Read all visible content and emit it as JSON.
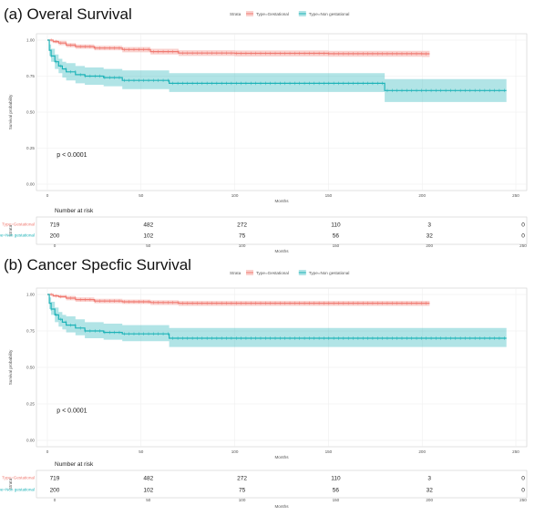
{
  "chart_data": [
    {
      "type": "line",
      "title": "(a) Overal Survival",
      "xlabel": "Months",
      "ylabel": "Survival probability",
      "xlim": [
        0,
        250
      ],
      "ylim": [
        0,
        1
      ],
      "x_ticks": [
        "0",
        "50",
        "100",
        "150",
        "200",
        "250"
      ],
      "y_ticks": [
        "0.00",
        "0.25",
        "0.50",
        "0.75",
        "1.00"
      ],
      "legend_title": "Strata",
      "legend_position": "top",
      "grid": true,
      "pvalue": "p < 0.0001",
      "series": [
        {
          "name": "Type=Gestational",
          "color": "#F07B72",
          "x": [
            0,
            3,
            6,
            10,
            15,
            25,
            40,
            55,
            70,
            100,
            150,
            200,
            204
          ],
          "y": [
            1.0,
            0.99,
            0.98,
            0.965,
            0.955,
            0.945,
            0.935,
            0.92,
            0.91,
            0.908,
            0.906,
            0.905,
            0.905
          ],
          "ci_lower": [
            1.0,
            0.98,
            0.965,
            0.95,
            0.94,
            0.93,
            0.915,
            0.9,
            0.89,
            0.887,
            0.885,
            0.883,
            0.883
          ],
          "ci_upper": [
            1.0,
            1.0,
            0.995,
            0.98,
            0.97,
            0.96,
            0.952,
            0.94,
            0.93,
            0.928,
            0.926,
            0.925,
            0.925
          ]
        },
        {
          "name": "Type=Non gestational",
          "color": "#1FB3B8",
          "x": [
            0,
            1,
            2,
            4,
            6,
            8,
            10,
            15,
            20,
            30,
            40,
            65,
            100,
            150,
            180,
            245
          ],
          "y": [
            1.0,
            0.93,
            0.89,
            0.85,
            0.82,
            0.8,
            0.78,
            0.76,
            0.75,
            0.74,
            0.72,
            0.7,
            0.7,
            0.7,
            0.65,
            0.65
          ],
          "ci_lower": [
            1.0,
            0.89,
            0.85,
            0.8,
            0.77,
            0.74,
            0.72,
            0.7,
            0.69,
            0.68,
            0.66,
            0.64,
            0.64,
            0.64,
            0.57,
            0.57
          ],
          "ci_upper": [
            1.0,
            0.97,
            0.94,
            0.9,
            0.87,
            0.85,
            0.84,
            0.82,
            0.81,
            0.8,
            0.79,
            0.77,
            0.77,
            0.77,
            0.73,
            0.73
          ]
        }
      ],
      "risk_table": {
        "title": "Number at risk",
        "ylabel": "Strata",
        "xlabel": "Months",
        "times": [
          0,
          50,
          100,
          150,
          200,
          250
        ],
        "rows": [
          {
            "name": "Type=Gestational",
            "color": "#F07B72",
            "values": [
              "719",
              "482",
              "272",
              "110",
              "3",
              "0"
            ]
          },
          {
            "name": "Type=Non gestational",
            "color": "#1FB3B8",
            "values": [
              "200",
              "102",
              "75",
              "56",
              "32",
              "0"
            ]
          }
        ]
      }
    },
    {
      "type": "line",
      "title": "(b) Cancer Specfic Survival",
      "xlabel": "Months",
      "ylabel": "Survival probability",
      "xlim": [
        0,
        250
      ],
      "ylim": [
        0,
        1
      ],
      "x_ticks": [
        "0",
        "50",
        "100",
        "150",
        "200",
        "250"
      ],
      "y_ticks": [
        "0.00",
        "0.25",
        "0.50",
        "0.75",
        "1.00"
      ],
      "legend_title": "Strata",
      "legend_position": "top",
      "grid": true,
      "pvalue": "p < 0.0001",
      "series": [
        {
          "name": "Type=Gestational",
          "color": "#F07B72",
          "x": [
            0,
            3,
            6,
            10,
            15,
            25,
            40,
            55,
            70,
            100,
            150,
            200,
            204
          ],
          "y": [
            1.0,
            0.99,
            0.985,
            0.975,
            0.965,
            0.955,
            0.95,
            0.945,
            0.94,
            0.94,
            0.94,
            0.94,
            0.94
          ],
          "ci_lower": [
            1.0,
            0.985,
            0.975,
            0.96,
            0.95,
            0.94,
            0.935,
            0.928,
            0.922,
            0.922,
            0.922,
            0.922,
            0.922
          ],
          "ci_upper": [
            1.0,
            1.0,
            0.995,
            0.99,
            0.98,
            0.97,
            0.965,
            0.96,
            0.956,
            0.956,
            0.956,
            0.956,
            0.956
          ]
        },
        {
          "name": "Type=Non gestational",
          "color": "#1FB3B8",
          "x": [
            0,
            1,
            2,
            4,
            6,
            8,
            10,
            15,
            20,
            30,
            40,
            65,
            100,
            150,
            200,
            245
          ],
          "y": [
            1.0,
            0.94,
            0.9,
            0.86,
            0.83,
            0.81,
            0.79,
            0.77,
            0.75,
            0.74,
            0.73,
            0.7,
            0.7,
            0.7,
            0.7,
            0.7
          ],
          "ci_lower": [
            1.0,
            0.9,
            0.86,
            0.81,
            0.78,
            0.76,
            0.74,
            0.72,
            0.7,
            0.69,
            0.68,
            0.64,
            0.64,
            0.64,
            0.64,
            0.64
          ],
          "ci_upper": [
            1.0,
            0.98,
            0.95,
            0.91,
            0.88,
            0.86,
            0.85,
            0.83,
            0.81,
            0.8,
            0.79,
            0.77,
            0.77,
            0.77,
            0.77,
            0.77
          ]
        }
      ],
      "risk_table": {
        "title": "Number at risk",
        "ylabel": "Strata",
        "xlabel": "Months",
        "times": [
          0,
          50,
          100,
          150,
          200,
          250
        ],
        "rows": [
          {
            "name": "Type=Gestational",
            "color": "#F07B72",
            "values": [
              "719",
              "482",
              "272",
              "110",
              "3",
              "0"
            ]
          },
          {
            "name": "Type=Non gestational",
            "color": "#1FB3B8",
            "values": [
              "200",
              "102",
              "75",
              "56",
              "32",
              "0"
            ]
          }
        ]
      }
    }
  ]
}
